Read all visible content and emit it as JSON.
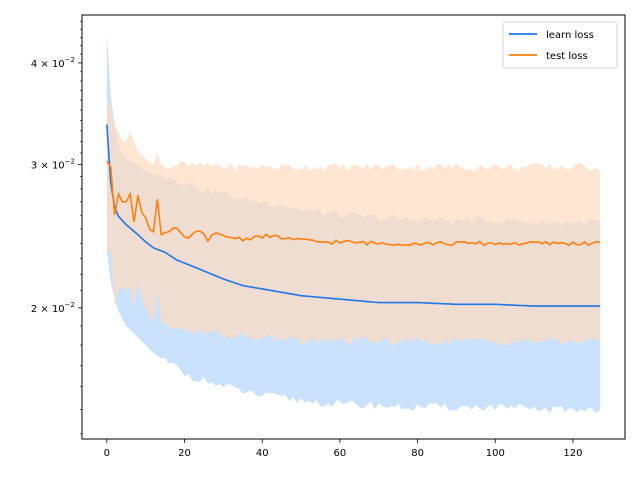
{
  "chart_data": {
    "type": "line",
    "title": "",
    "xlabel": "",
    "ylabel": "",
    "x_scale": "linear",
    "y_scale": "log",
    "xlim": [
      -6.4,
      133.4
    ],
    "ylim": [
      0.0138,
      0.0458
    ],
    "xticks": [
      0,
      20,
      40,
      60,
      80,
      100,
      120
    ],
    "xtick_labels": [
      "0",
      "20",
      "40",
      "60",
      "80",
      "100",
      "120"
    ],
    "yticks": [
      0.02,
      0.03,
      0.04
    ],
    "ytick_labels": [
      {
        "mantissa": "2",
        "base": "10",
        "exp": "−2"
      },
      {
        "mantissa": "3",
        "base": "10",
        "exp": "−2"
      },
      {
        "mantissa": "4",
        "base": "10",
        "exp": "−2"
      }
    ],
    "grid": false,
    "legend": {
      "position": "upper-right",
      "entries": [
        "learn loss",
        "test loss"
      ]
    },
    "series": [
      {
        "name": "learn loss",
        "color": "#1f77e8",
        "band_color": "#c9e1fa",
        "keypoints": {
          "x": [
            0,
            1,
            2,
            3,
            5,
            8,
            10,
            12,
            15,
            18,
            20,
            25,
            30,
            35,
            40,
            45,
            50,
            55,
            60,
            65,
            70,
            75,
            80,
            90,
            100,
            110,
            120,
            127
          ],
          "mean": [
            0.0336,
            0.0285,
            0.0266,
            0.0259,
            0.0253,
            0.0246,
            0.0241,
            0.0237,
            0.0234,
            0.0229,
            0.0227,
            0.0222,
            0.0217,
            0.0213,
            0.0211,
            0.0209,
            0.0207,
            0.0206,
            0.0205,
            0.0204,
            0.0203,
            0.0203,
            0.0203,
            0.0202,
            0.0202,
            0.0201,
            0.0201,
            0.0201
          ],
          "upper": [
            0.0435,
            0.0365,
            0.0335,
            0.0315,
            0.0305,
            0.03,
            0.0295,
            0.0292,
            0.029,
            0.0288,
            0.0285,
            0.028,
            0.0276,
            0.0272,
            0.027,
            0.0268,
            0.0264,
            0.0262,
            0.026,
            0.0259,
            0.0258,
            0.0257,
            0.0257,
            0.0256,
            0.0256,
            0.0255,
            0.0255,
            0.0255
          ],
          "lower": [
            0.0235,
            0.0215,
            0.0205,
            0.0198,
            0.019,
            0.0184,
            0.018,
            0.0176,
            0.0172,
            0.0169,
            0.0166,
            0.0163,
            0.016,
            0.0158,
            0.0156,
            0.0155,
            0.0154,
            0.0153,
            0.0152,
            0.0152,
            0.0152,
            0.0151,
            0.0151,
            0.0151,
            0.0151,
            0.015,
            0.015,
            0.015
          ]
        }
      },
      {
        "name": "test loss",
        "color": "#ff7f0e",
        "band_color": "#ffdcc0",
        "keypoints": {
          "x": [
            0,
            1,
            2,
            3,
            4,
            5,
            6,
            7,
            8,
            9,
            10,
            11,
            12,
            13,
            14,
            16,
            18,
            20,
            22,
            24,
            26,
            28,
            30,
            35,
            40,
            45,
            50,
            55,
            60,
            70,
            80,
            90,
            100,
            110,
            120,
            127
          ],
          "mean": [
            0.0303,
            0.0298,
            0.026,
            0.0276,
            0.027,
            0.027,
            0.0276,
            0.0255,
            0.0275,
            0.0262,
            0.0258,
            0.025,
            0.0248,
            0.0272,
            0.0246,
            0.0248,
            0.025,
            0.0243,
            0.0246,
            0.0248,
            0.0243,
            0.0246,
            0.0245,
            0.0243,
            0.0245,
            0.0244,
            0.0242,
            0.0241,
            0.0241,
            0.024,
            0.024,
            0.024,
            0.024,
            0.024,
            0.024,
            0.024
          ],
          "upper": [
            0.0362,
            0.0355,
            0.0335,
            0.033,
            0.032,
            0.032,
            0.033,
            0.032,
            0.0312,
            0.0308,
            0.0305,
            0.0302,
            0.03,
            0.031,
            0.03,
            0.0298,
            0.03,
            0.03,
            0.0298,
            0.03,
            0.0298,
            0.03,
            0.0298,
            0.0298,
            0.0298,
            0.0298,
            0.0298,
            0.0298,
            0.0298,
            0.0298,
            0.0298,
            0.0298,
            0.0298,
            0.0298,
            0.0298,
            0.0298
          ],
          "lower": [
            0.0235,
            0.0235,
            0.02,
            0.021,
            0.0212,
            0.021,
            0.0212,
            0.02,
            0.0215,
            0.0205,
            0.02,
            0.0195,
            0.0192,
            0.021,
            0.0192,
            0.019,
            0.019,
            0.0186,
            0.0188,
            0.0188,
            0.0185,
            0.0186,
            0.0185,
            0.0184,
            0.0184,
            0.0183,
            0.0182,
            0.0182,
            0.0182,
            0.0182,
            0.0182,
            0.0182,
            0.0182,
            0.0182,
            0.0182,
            0.0182
          ]
        }
      }
    ]
  }
}
